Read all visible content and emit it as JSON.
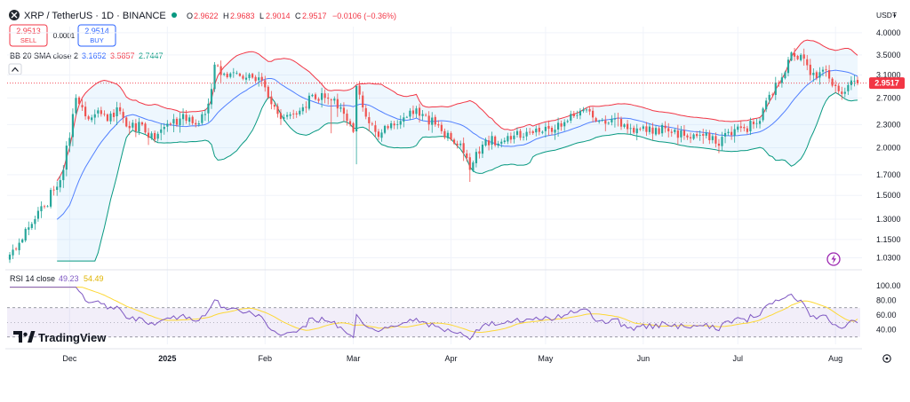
{
  "header": {
    "symbol_line": "XRP / TetherUS · 1D · BINANCE",
    "o_label": "O",
    "o_value": "2.9622",
    "h_label": "H",
    "h_value": "2.9683",
    "l_label": "L",
    "l_value": "2.9014",
    "c_label": "C",
    "c_value": "2.9517",
    "change": "−0.0106 (−0.36%)",
    "currency": "USDT",
    "currency_arrow": "▾"
  },
  "trade": {
    "sell_price": "2.9513",
    "sell_label": "SELL",
    "spread": "0.0001",
    "buy_price": "2.9514",
    "buy_label": "BUY"
  },
  "bb_legend": {
    "label": "BB 20 SMA close 2",
    "basis": "3.1652",
    "upper": "3.5857",
    "lower": "2.7447"
  },
  "rsi_legend": {
    "label": "RSI 14 close",
    "rsi": "49.23",
    "ma": "54.49"
  },
  "last_price_tag": "2.9517",
  "watermark": "TradingView",
  "colors": {
    "up": "#26a69a",
    "down": "#ef5350",
    "bb_upper": "#f23645",
    "bb_lower": "#089981",
    "bb_basis": "#2962ff",
    "bb_fill": "#2196f3",
    "rsi": "#7e57c2",
    "rsi_ma": "#fdd835"
  },
  "icons": {
    "collapse": "caret-up-icon",
    "flash": "lightning-icon",
    "settings": "gear-icon",
    "logo": "tradingview-logo"
  },
  "chart_data": [
    {
      "type": "candlestick",
      "title": "XRP / TetherUS · 1D · BINANCE",
      "y_scale": "log",
      "ylim": [
        1.0,
        4.15
      ],
      "y_ticks": [
        "4.0000",
        "3.5000",
        "3.1000",
        "2.7000",
        "2.3000",
        "2.0000",
        "1.7000",
        "1.5000",
        "1.3000",
        "1.1500",
        "1.0300"
      ],
      "x_ticks": [
        "Dec",
        "2025",
        "Feb",
        "Mar",
        "Apr",
        "May",
        "Jun",
        "Jul",
        "Aug"
      ],
      "x_tick_dates": [
        "2024-12-01",
        "2025-01-01",
        "2025-02-01",
        "2025-03-01",
        "2025-04-01",
        "2025-05-01",
        "2025-06-01",
        "2025-07-01",
        "2025-08-01"
      ],
      "x_range": [
        "2024-11-12",
        "2025-08-08"
      ],
      "close_anchors": [
        [
          "2024-11-12",
          1.05
        ],
        [
          "2024-11-16",
          1.15
        ],
        [
          "2024-11-20",
          1.3
        ],
        [
          "2024-11-23",
          1.4
        ],
        [
          "2024-11-26",
          1.55
        ],
        [
          "2024-11-29",
          1.75
        ],
        [
          "2024-12-02",
          2.45
        ],
        [
          "2024-12-03",
          2.7
        ],
        [
          "2024-12-05",
          2.55
        ],
        [
          "2024-12-08",
          2.4
        ],
        [
          "2024-12-11",
          2.45
        ],
        [
          "2024-12-13",
          2.35
        ],
        [
          "2024-12-16",
          2.55
        ],
        [
          "2024-12-20",
          2.25
        ],
        [
          "2024-12-24",
          2.3
        ],
        [
          "2024-12-28",
          2.1
        ],
        [
          "2025-01-02",
          2.3
        ],
        [
          "2025-01-06",
          2.45
        ],
        [
          "2025-01-10",
          2.3
        ],
        [
          "2025-01-13",
          2.45
        ],
        [
          "2025-01-15",
          2.85
        ],
        [
          "2025-01-16",
          3.3
        ],
        [
          "2025-01-18",
          3.1
        ],
        [
          "2025-01-22",
          3.15
        ],
        [
          "2025-01-26",
          3.05
        ],
        [
          "2025-01-31",
          3.0
        ],
        [
          "2025-02-03",
          2.6
        ],
        [
          "2025-02-07",
          2.4
        ],
        [
          "2025-02-12",
          2.5
        ],
        [
          "2025-02-16",
          2.75
        ],
        [
          "2025-02-20",
          2.7
        ],
        [
          "2025-02-25",
          2.55
        ],
        [
          "2025-03-01",
          2.2
        ],
        [
          "2025-03-02",
          2.9
        ],
        [
          "2025-03-04",
          2.55
        ],
        [
          "2025-03-08",
          2.2
        ],
        [
          "2025-03-12",
          2.25
        ],
        [
          "2025-03-16",
          2.35
        ],
        [
          "2025-03-19",
          2.5
        ],
        [
          "2025-03-23",
          2.45
        ],
        [
          "2025-03-27",
          2.3
        ],
        [
          "2025-04-01",
          2.1
        ],
        [
          "2025-04-04",
          2.05
        ],
        [
          "2025-04-07",
          1.75
        ],
        [
          "2025-04-09",
          1.95
        ],
        [
          "2025-04-12",
          2.1
        ],
        [
          "2025-04-16",
          2.05
        ],
        [
          "2025-04-20",
          2.1
        ],
        [
          "2025-04-25",
          2.2
        ],
        [
          "2025-04-29",
          2.2
        ],
        [
          "2025-05-03",
          2.2
        ],
        [
          "2025-05-08",
          2.35
        ],
        [
          "2025-05-12",
          2.5
        ],
        [
          "2025-05-16",
          2.4
        ],
        [
          "2025-05-22",
          2.38
        ],
        [
          "2025-05-28",
          2.25
        ],
        [
          "2025-06-02",
          2.2
        ],
        [
          "2025-06-08",
          2.25
        ],
        [
          "2025-06-14",
          2.15
        ],
        [
          "2025-06-20",
          2.15
        ],
        [
          "2025-06-24",
          2.05
        ],
        [
          "2025-06-28",
          2.2
        ],
        [
          "2025-07-03",
          2.25
        ],
        [
          "2025-07-08",
          2.35
        ],
        [
          "2025-07-11",
          2.75
        ],
        [
          "2025-07-14",
          2.95
        ],
        [
          "2025-07-17",
          3.4
        ],
        [
          "2025-07-18",
          3.55
        ],
        [
          "2025-07-21",
          3.5
        ],
        [
          "2025-07-24",
          3.1
        ],
        [
          "2025-07-28",
          3.2
        ],
        [
          "2025-08-01",
          2.9
        ],
        [
          "2025-08-04",
          2.8
        ],
        [
          "2025-08-06",
          3.0
        ],
        [
          "2025-08-08",
          2.95
        ]
      ],
      "indicator_bb": {
        "name": "BB 20 SMA close 2",
        "basis": 3.1652,
        "upper": 3.5857,
        "lower": 2.7447
      },
      "last_price": 2.9517
    },
    {
      "type": "line",
      "title": "RSI 14 close",
      "ylim": [
        20,
        100
      ],
      "y_ticks": [
        "100.00",
        "80.00",
        "60.00",
        "40.00"
      ],
      "band": [
        30,
        70
      ],
      "mid": 50,
      "series": [
        {
          "name": "RSI",
          "last": 49.23
        },
        {
          "name": "MA",
          "last": 54.49
        }
      ]
    }
  ]
}
